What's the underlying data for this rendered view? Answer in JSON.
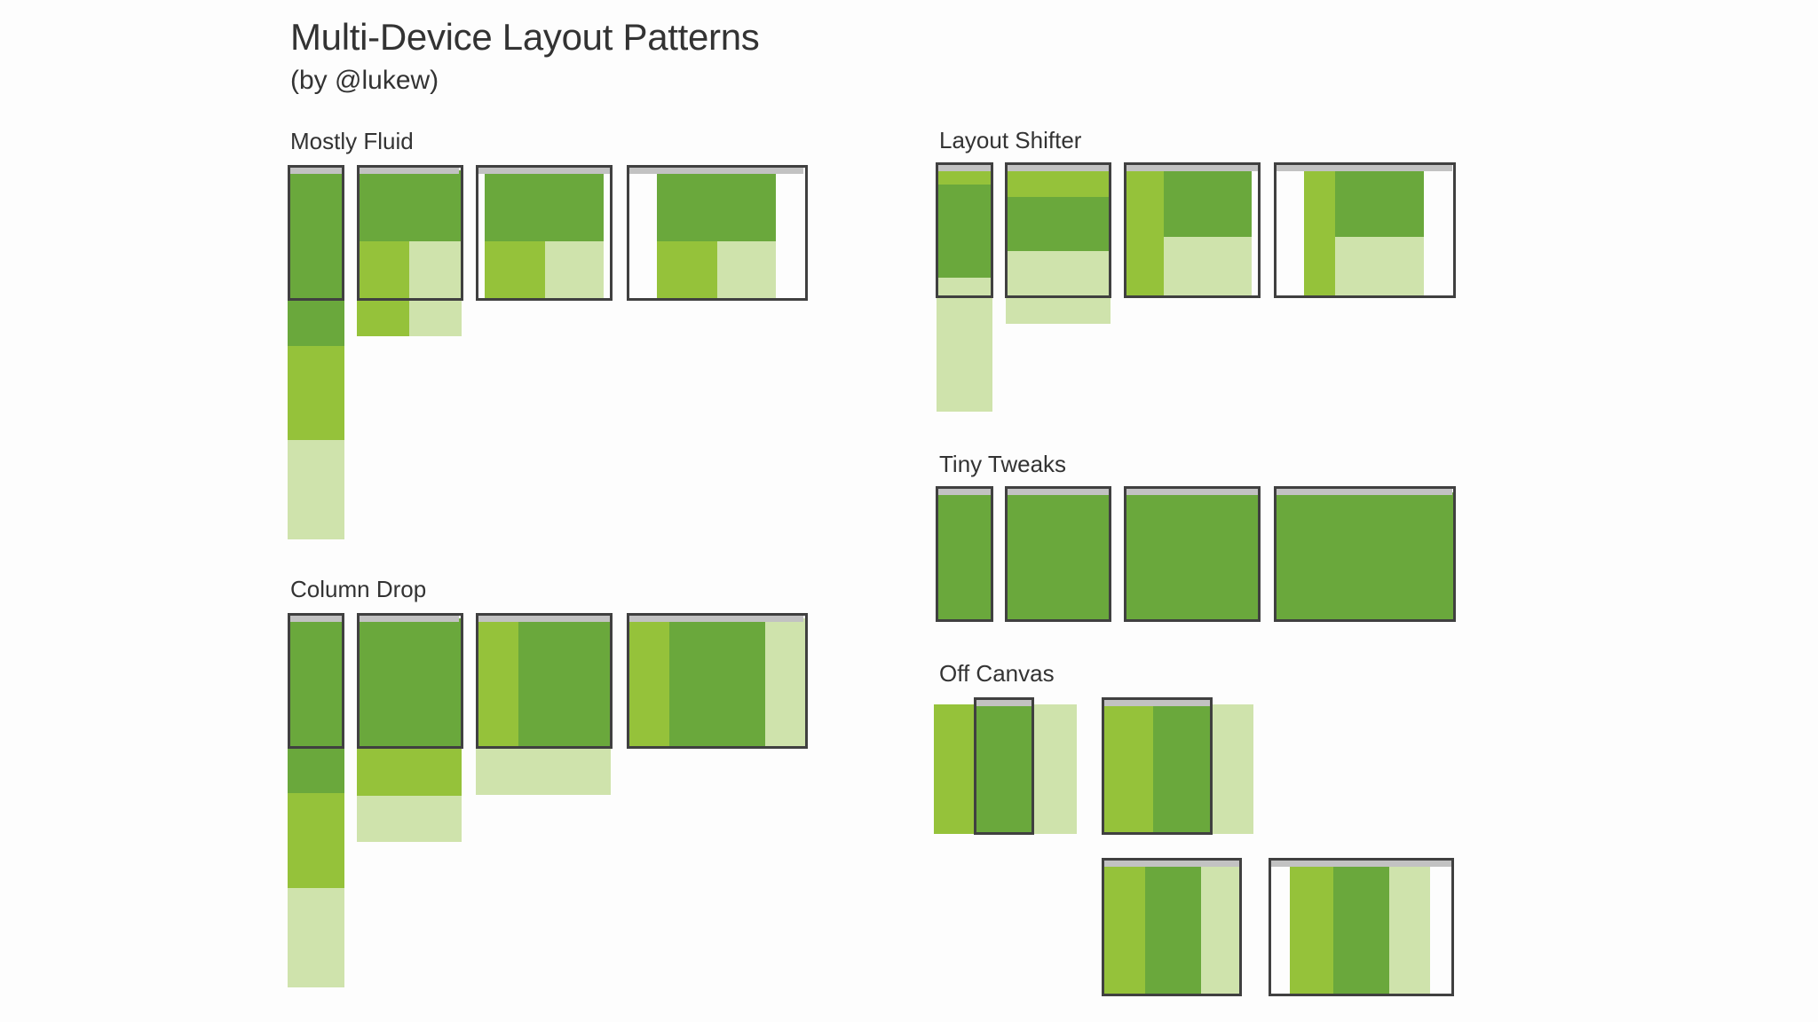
{
  "header": {
    "title": "Multi-Device Layout Patterns",
    "subtitle": "(by @lukew)"
  },
  "sections": {
    "mostly_fluid": "Mostly Fluid",
    "column_drop": "Column Drop",
    "layout_shifter": "Layout Shifter",
    "tiny_tweaks": "Tiny Tweaks",
    "off_canvas": "Off Canvas"
  },
  "colors": {
    "primary_content": "#6aa83c",
    "secondary_content": "#95c23a",
    "tertiary_content": "#cfe3ac",
    "device_frame": "#404040",
    "browser_chrome": "#c2c2c2"
  }
}
